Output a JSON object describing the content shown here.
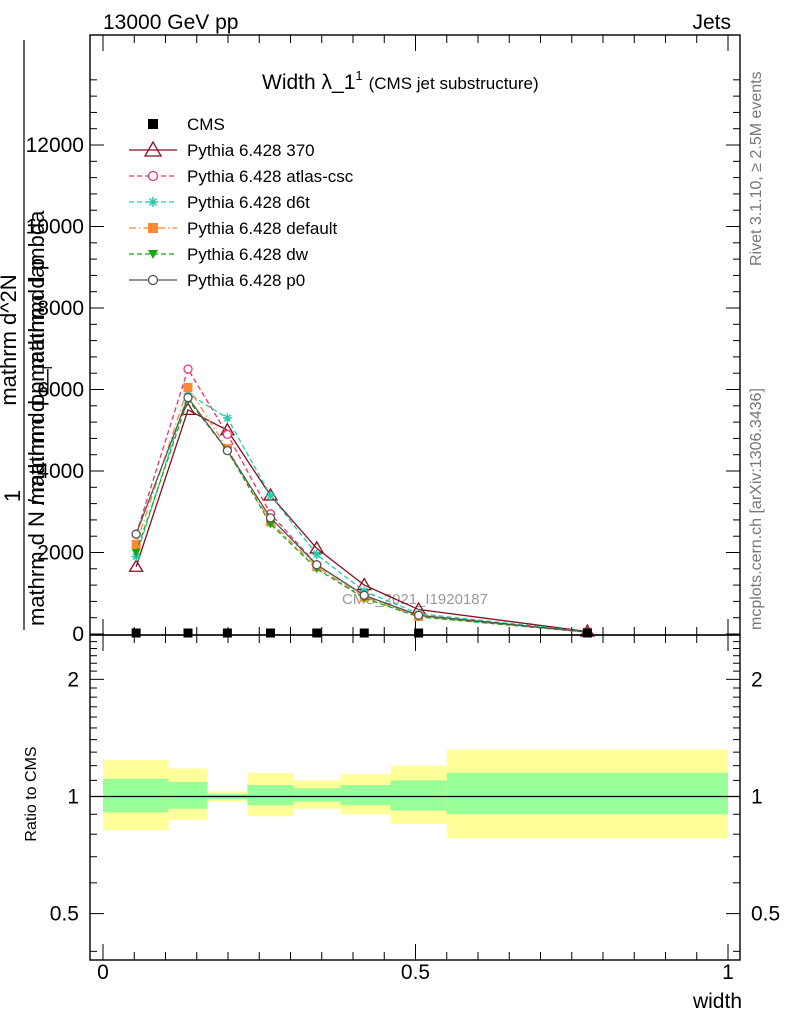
{
  "header": {
    "energy_label": "13000 GeV pp",
    "category_label": "Jets"
  },
  "side_labels": {
    "rivet": "Rivet 3.1.10, ≥ 2.5M events",
    "mcplots": "mcplots.cern.ch [arXiv:1306.3436]"
  },
  "watermark": "CMS_2021_I1920187",
  "colors": {
    "band_inner": "#99ff99",
    "band_outer": "#ffff99"
  },
  "chart_data": [
    {
      "type": "line",
      "title_main": "Width λ_1",
      "title_sup": "1",
      "title_sub": "(CMS jet substructure)",
      "ylabel": {
        "num_frac_1": "1",
        "denominator_line": "mathrm d N / mathrm d p_mathrm d p",
        "denominator_sub": "T",
        "numerator_line1": "mathrm d^2N",
        "numerator_line2": "mathrm d p_mathrm d lambda"
      },
      "ylim": [
        0,
        14700
      ],
      "yticks": [
        0,
        2000,
        4000,
        6000,
        8000,
        10000,
        12000
      ],
      "ytick_labels": [
        "0",
        "2000",
        "4000",
        "6000",
        "8000",
        "10000",
        "12000"
      ],
      "x": [
        0.053,
        0.136,
        0.199,
        0.268,
        0.342,
        0.418,
        0.505,
        0.775
      ],
      "series": [
        {
          "name": "CMS",
          "color": "#000000",
          "marker": "square-filled",
          "dash": "none",
          "values": [
            0,
            0,
            0,
            0,
            0,
            0,
            0,
            0
          ]
        },
        {
          "name": "Pythia 6.428 370",
          "color": "#8b0d1e",
          "marker": "triangle-open",
          "dash": "solid",
          "values": [
            1650,
            5500,
            5000,
            3400,
            2100,
            1200,
            600,
            60
          ]
        },
        {
          "name": "Pythia 6.428 atlas-csc",
          "color": "#ee3366",
          "marker": "circle-open",
          "dash": "dashed",
          "values": [
            2450,
            6500,
            4900,
            2950,
            1700,
            950,
            450,
            50
          ]
        },
        {
          "name": "Pythia 6.428 d6t",
          "color": "#22ccaa",
          "marker": "star",
          "dash": "dashed",
          "values": [
            1900,
            5900,
            5300,
            3400,
            1950,
            1050,
            500,
            55
          ]
        },
        {
          "name": "Pythia 6.428 default",
          "color": "#ff8833",
          "marker": "square-filled",
          "dash": "dashdot",
          "values": [
            2200,
            6050,
            4550,
            2750,
            1650,
            900,
            430,
            45
          ]
        },
        {
          "name": "Pythia 6.428 dw",
          "color": "#11aa11",
          "marker": "triangle-down-filled",
          "dash": "dashed",
          "values": [
            2000,
            5750,
            4500,
            2700,
            1600,
            880,
            420,
            45
          ]
        },
        {
          "name": "Pythia 6.428 p0",
          "color": "#555555",
          "marker": "circle-open",
          "dash": "solid",
          "values": [
            2450,
            5800,
            4500,
            2850,
            1700,
            950,
            460,
            50
          ]
        }
      ]
    },
    {
      "type": "area",
      "ylabel": "Ratio to CMS",
      "xlabel": "width",
      "xlim": [
        0,
        1
      ],
      "xticks": [
        0,
        0.5,
        1
      ],
      "xtick_labels": [
        "0",
        "0.5",
        "1"
      ],
      "ylim_log": [
        0.38,
        2.6
      ],
      "yticks": [
        0.5,
        1,
        2
      ],
      "ytick_labels": [
        "0.5",
        "1",
        "2"
      ],
      "reference_line": 1,
      "bins": [
        {
          "x0": 0.0,
          "x1": 0.105,
          "inner": [
            0.91,
            1.11
          ],
          "outer": [
            0.82,
            1.24
          ]
        },
        {
          "x0": 0.105,
          "x1": 0.167,
          "inner": [
            0.93,
            1.09
          ],
          "outer": [
            0.87,
            1.18
          ]
        },
        {
          "x0": 0.167,
          "x1": 0.231,
          "inner": [
            0.985,
            1.015
          ],
          "outer": [
            0.97,
            1.03
          ]
        },
        {
          "x0": 0.231,
          "x1": 0.305,
          "inner": [
            0.95,
            1.07
          ],
          "outer": [
            0.89,
            1.15
          ]
        },
        {
          "x0": 0.305,
          "x1": 0.38,
          "inner": [
            0.97,
            1.05
          ],
          "outer": [
            0.93,
            1.1
          ]
        },
        {
          "x0": 0.38,
          "x1": 0.46,
          "inner": [
            0.95,
            1.07
          ],
          "outer": [
            0.9,
            1.14
          ]
        },
        {
          "x0": 0.46,
          "x1": 0.55,
          "inner": [
            0.92,
            1.1
          ],
          "outer": [
            0.85,
            1.2
          ]
        },
        {
          "x0": 0.55,
          "x1": 1.0,
          "inner": [
            0.9,
            1.15
          ],
          "outer": [
            0.78,
            1.32
          ]
        }
      ]
    }
  ]
}
